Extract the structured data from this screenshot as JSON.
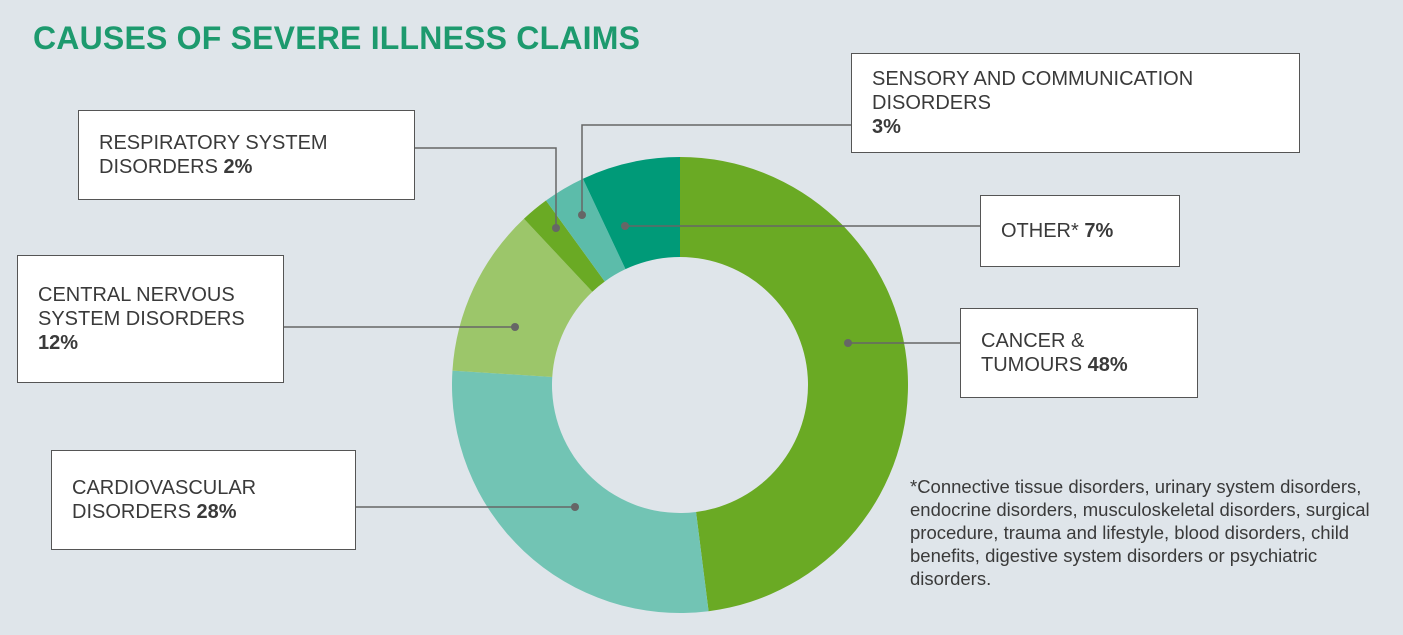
{
  "chart_data": {
    "type": "donut",
    "title": "CAUSES OF SEVERE ILLNESS CLAIMS",
    "categories": [
      "CANCER & TUMOURS",
      "CARDIOVASCULAR DISORDERS",
      "CENTRAL NERVOUS SYSTEM DISORDERS",
      "RESPIRATORY SYSTEM DISORDERS",
      "SENSORY AND COMMUNICATION DISORDERS",
      "OTHER*"
    ],
    "values": [
      48,
      28,
      12,
      2,
      3,
      7
    ],
    "value_labels": [
      "48%",
      "28%",
      "12%",
      "2%",
      "3%",
      "7%"
    ],
    "colors": [
      "#6aaa24",
      "#72c4b4",
      "#9cc66a",
      "#6aaa24",
      "#5cbcaa",
      "#009a78"
    ],
    "footnote": "*Connective tissue disorders, urinary system disorders, endocrine disorders, musculoskeletal disorders, surgical procedure, trauma and lifestyle, blood disorders, child benefits, digestive system disorders or psychiatric disorders."
  }
}
